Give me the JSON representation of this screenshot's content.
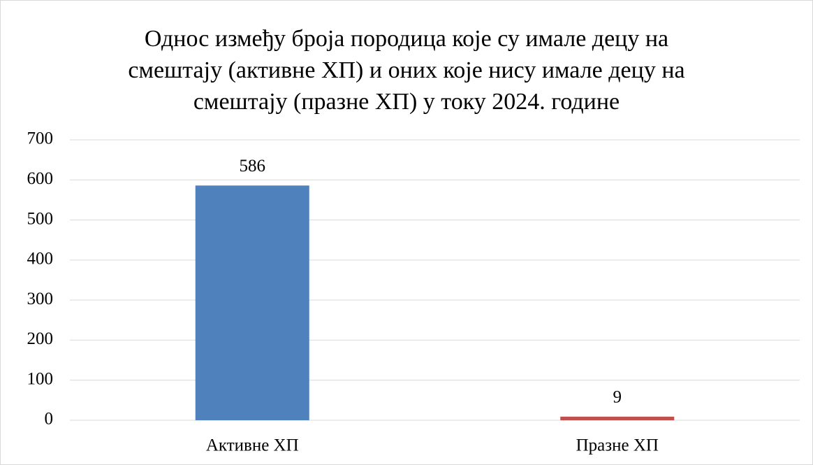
{
  "chart_data": {
    "type": "bar",
    "title": [
      "Однос између броја породица које су имале децу на",
      "смештају (активне ХП) и оних које нису имале децу на",
      "смештају (празне ХП) у току 2024. године"
    ],
    "categories": [
      "Активне ХП",
      "Празне ХП"
    ],
    "values": [
      586,
      9
    ],
    "colors": [
      "#4f81bd",
      "#c0504d"
    ],
    "ylim": [
      0,
      700
    ],
    "yticks": [
      0,
      100,
      200,
      300,
      400,
      500,
      600,
      700
    ],
    "grid": true
  }
}
